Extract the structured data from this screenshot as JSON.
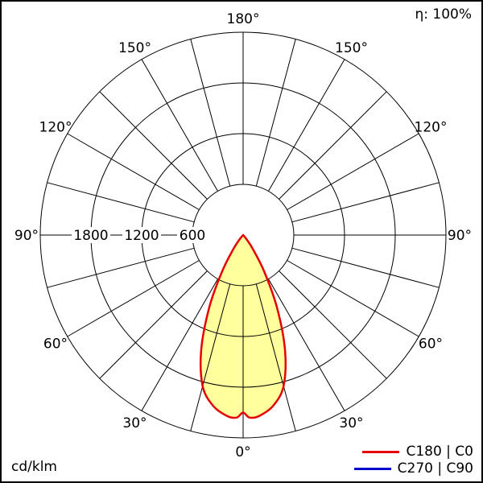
{
  "header": {
    "efficiency": "η: 100%"
  },
  "footer": {
    "units": "cd/klm"
  },
  "legend": {
    "items": [
      {
        "label": "C180 | C0",
        "color": "#e60000"
      },
      {
        "label": "C270 | C90",
        "color": "#0000cc"
      }
    ]
  },
  "chart_data": {
    "type": "line",
    "subtype": "polar-photometric-intensity",
    "units": "cd/klm",
    "efficiency": "η: 100%",
    "radial_max": 2400,
    "rings": [
      600,
      1200,
      1800,
      2400
    ],
    "radial_tick_labels": [
      "600",
      "1200",
      "1800"
    ],
    "grid_step_deg": 15,
    "angle_tick_labels": [
      "0°",
      "30°",
      "60°",
      "90°",
      "120°",
      "150°",
      "180°"
    ],
    "grid_color": "#000000",
    "beam_fill_color": "#ffff9e",
    "series": [
      {
        "name": "C180 | C0",
        "color": "#e60000",
        "fill": "#ffff9e",
        "symmetric": true,
        "angles_deg": [
          0,
          2,
          5,
          10,
          15,
          20,
          25,
          30,
          35,
          40,
          45
        ],
        "values": [
          2100,
          2160,
          2150,
          2050,
          1850,
          1450,
          950,
          500,
          200,
          60,
          0
        ]
      },
      {
        "name": "C270 | C90",
        "color": "#0000cc",
        "plotted": false,
        "angles_deg": [],
        "values": []
      }
    ]
  }
}
